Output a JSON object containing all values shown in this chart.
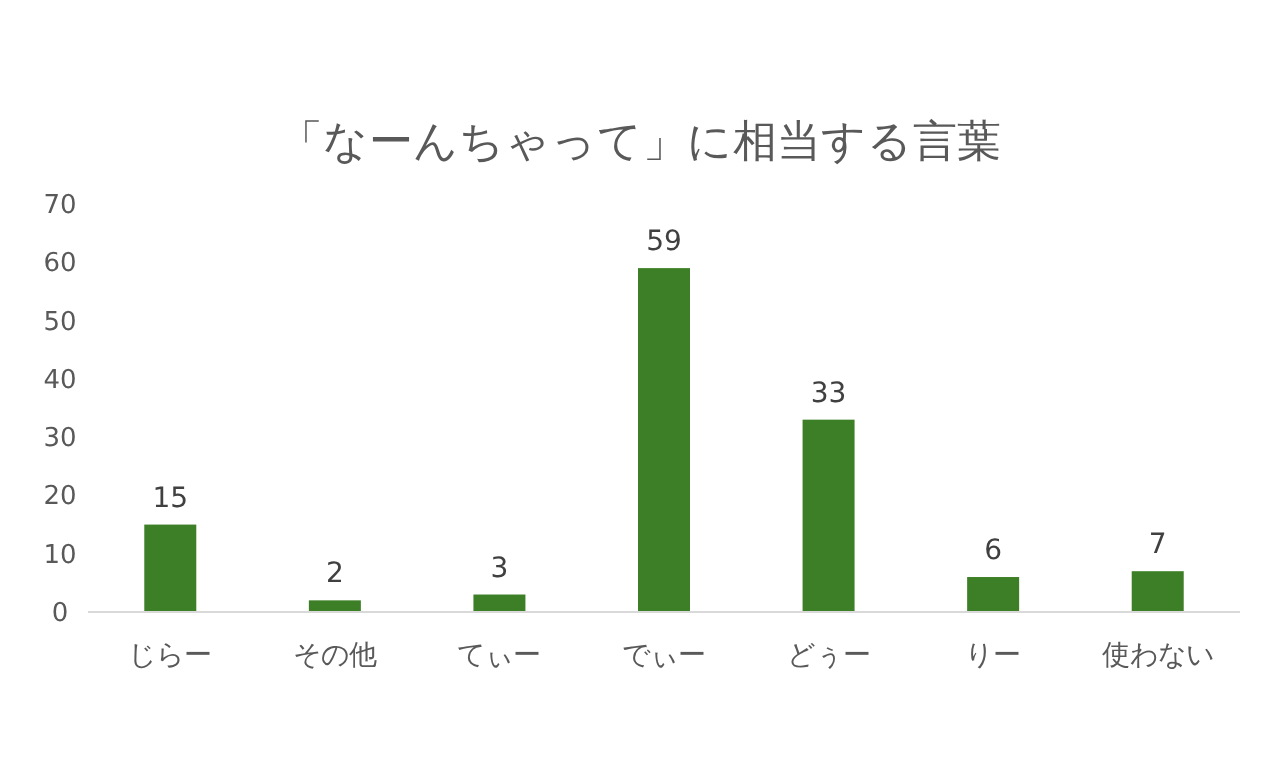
{
  "chart_data": {
    "type": "bar",
    "title": "「なーんちゃって」に相当する言葉",
    "categories": [
      "じらー",
      "その他",
      "てぃー",
      "でぃー",
      "どぅー",
      "りー",
      "使わない"
    ],
    "values": [
      15,
      2,
      3,
      59,
      33,
      6,
      7
    ],
    "color": "#3d7f26",
    "ylim": [
      0,
      70
    ],
    "yticks": [
      0,
      10,
      20,
      30,
      40,
      50,
      60,
      70
    ],
    "data_labels": true,
    "grid": false
  }
}
